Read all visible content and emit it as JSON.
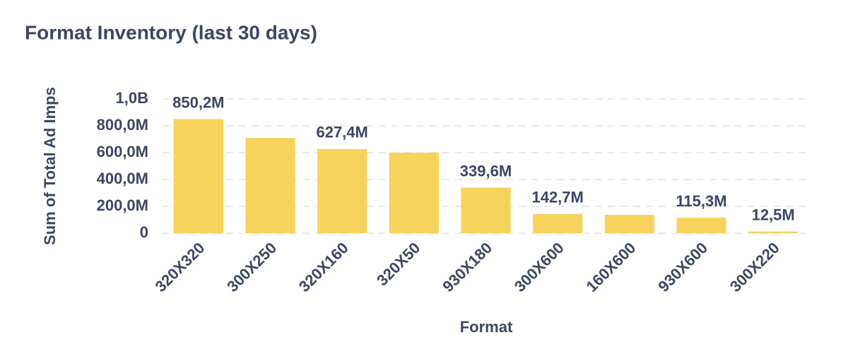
{
  "chart_data": {
    "type": "bar",
    "title": "Format Inventory (last 30 days)",
    "x_label": "Format",
    "y_label": "Sum of Total Ad Imps",
    "categories": [
      "320X320",
      "300X250",
      "320X160",
      "320X50",
      "930X180",
      "300X600",
      "160X600",
      "930X600",
      "300X220"
    ],
    "values": [
      850200000,
      710000000,
      627400000,
      600000000,
      339600000,
      142700000,
      137000000,
      115300000,
      12500000
    ],
    "value_labels": [
      "850,2M",
      null,
      "627,4M",
      null,
      "339,6M",
      "142,7M",
      null,
      "115,3M",
      "12,5M"
    ],
    "color": "#f7d35c",
    "ylim": [
      0,
      1000000000
    ],
    "yticks": [
      0,
      {
        "value": 200000000,
        "label": "200,0M"
      },
      {
        "value": 400000000,
        "label": "400,0M"
      },
      {
        "value": 600000000,
        "label": "600,0M"
      },
      {
        "value": 800000000,
        "label": "800,0M"
      },
      {
        "value": 1000000000,
        "label": "1,0B"
      }
    ],
    "grid": true
  }
}
